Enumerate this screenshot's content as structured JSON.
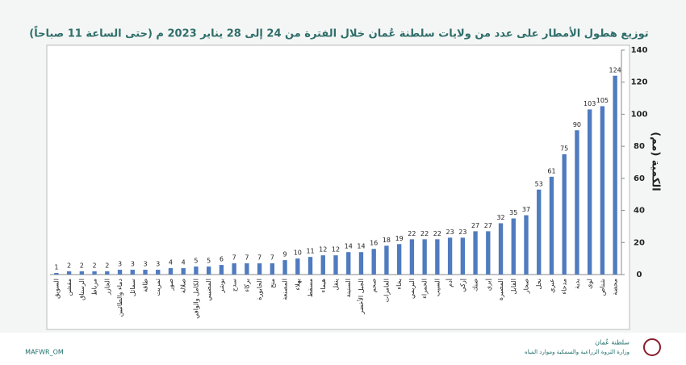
{
  "chart_data": {
    "type": "bar",
    "title": "توزيع هطول الأمطار على عدد من ولايات سلطنة عُمان خلال الفترة من 24 إلى 28 يناير 2023 م (حتى الساعة 11 صباحاً)",
    "y_label": "الكمية (مم)",
    "categories": [
      "السويق",
      "مقشن",
      "الرستاق",
      "مرباط",
      "الجازر",
      "دماء والطائيين",
      "سمائل",
      "طاقة",
      "ثمريت",
      "صور",
      "صلالة",
      "الكامل والوافي",
      "المضيبي",
      "بوشر",
      "سدح",
      "بركاء",
      "الخابورة",
      "منح",
      "المصنعة",
      "بهلاء",
      "مسقط",
      "هيماء",
      "ينقل",
      "السنينة",
      "الجبل الأخضر",
      "صحم",
      "العامرات",
      "بخاء",
      "البريمي",
      "الحمراء",
      "السيب",
      "أدم",
      "إزكي",
      "ضنك",
      "إبري",
      "المصيرة",
      "القابل",
      "صحار",
      "نخل",
      "عبري",
      "مدحاء",
      "بدية",
      "لوى",
      "شناص",
      "محضة"
    ],
    "values": [
      1,
      2,
      2,
      2,
      2,
      3,
      3,
      3,
      3,
      4,
      4,
      5,
      5,
      6,
      7,
      7,
      7,
      7,
      9,
      10,
      11,
      12,
      12,
      14,
      14,
      16,
      18,
      19,
      22,
      22,
      22,
      23,
      23,
      27,
      27,
      32,
      35,
      37,
      53,
      61,
      75,
      90,
      103,
      105,
      124
    ],
    "color": "#4f7bbf",
    "ylim": [
      0,
      140
    ],
    "yticks": [
      0,
      20,
      40,
      60,
      80,
      100,
      120,
      140
    ],
    "y_axis_side": "right",
    "grid": false
  },
  "footer": {
    "handle": "MAFWR_OM",
    "country": "سلطنة عُمان",
    "ministry": "وزارة الثروة الزراعية والسمكية وموارد المياه"
  }
}
